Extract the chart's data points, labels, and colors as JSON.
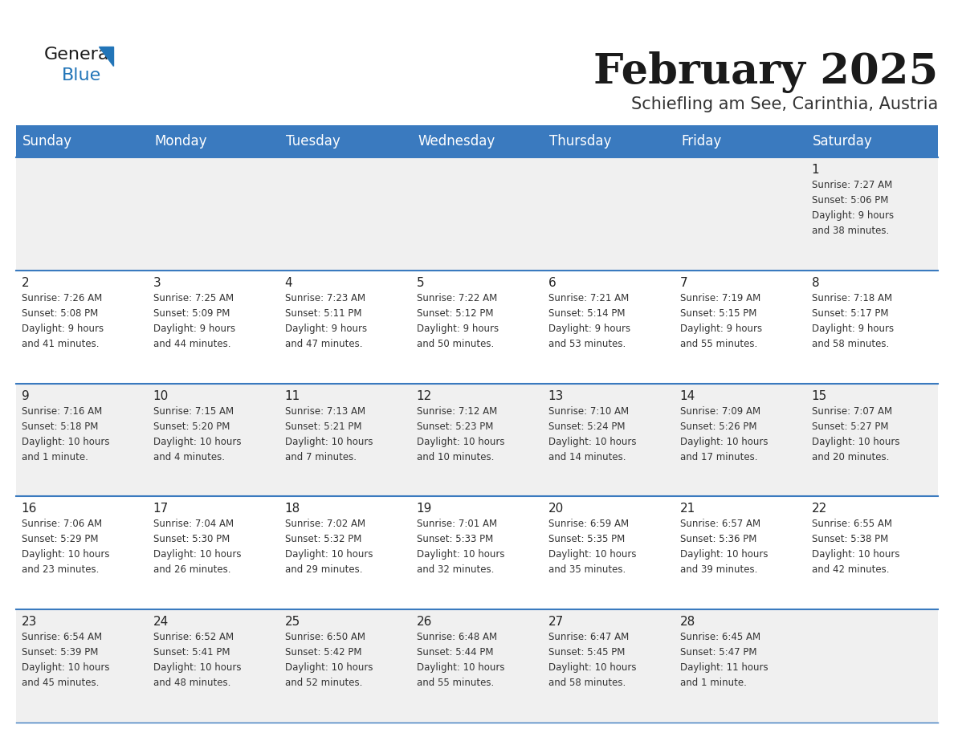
{
  "title": "February 2025",
  "subtitle": "Schiefling am See, Carinthia, Austria",
  "header_bg": "#3a7abf",
  "header_text": "#ffffff",
  "row_bg": [
    "#f0f0f0",
    "#ffffff",
    "#f0f0f0",
    "#ffffff",
    "#f0f0f0"
  ],
  "day_headers": [
    "Sunday",
    "Monday",
    "Tuesday",
    "Wednesday",
    "Thursday",
    "Friday",
    "Saturday"
  ],
  "calendar_data": [
    [
      {
        "day": null,
        "sunrise": null,
        "sunset": null,
        "daylight": null
      },
      {
        "day": null,
        "sunrise": null,
        "sunset": null,
        "daylight": null
      },
      {
        "day": null,
        "sunrise": null,
        "sunset": null,
        "daylight": null
      },
      {
        "day": null,
        "sunrise": null,
        "sunset": null,
        "daylight": null
      },
      {
        "day": null,
        "sunrise": null,
        "sunset": null,
        "daylight": null
      },
      {
        "day": null,
        "sunrise": null,
        "sunset": null,
        "daylight": null
      },
      {
        "day": 1,
        "sunrise": "7:27 AM",
        "sunset": "5:06 PM",
        "daylight": "9 hours\nand 38 minutes."
      }
    ],
    [
      {
        "day": 2,
        "sunrise": "7:26 AM",
        "sunset": "5:08 PM",
        "daylight": "9 hours\nand 41 minutes."
      },
      {
        "day": 3,
        "sunrise": "7:25 AM",
        "sunset": "5:09 PM",
        "daylight": "9 hours\nand 44 minutes."
      },
      {
        "day": 4,
        "sunrise": "7:23 AM",
        "sunset": "5:11 PM",
        "daylight": "9 hours\nand 47 minutes."
      },
      {
        "day": 5,
        "sunrise": "7:22 AM",
        "sunset": "5:12 PM",
        "daylight": "9 hours\nand 50 minutes."
      },
      {
        "day": 6,
        "sunrise": "7:21 AM",
        "sunset": "5:14 PM",
        "daylight": "9 hours\nand 53 minutes."
      },
      {
        "day": 7,
        "sunrise": "7:19 AM",
        "sunset": "5:15 PM",
        "daylight": "9 hours\nand 55 minutes."
      },
      {
        "day": 8,
        "sunrise": "7:18 AM",
        "sunset": "5:17 PM",
        "daylight": "9 hours\nand 58 minutes."
      }
    ],
    [
      {
        "day": 9,
        "sunrise": "7:16 AM",
        "sunset": "5:18 PM",
        "daylight": "10 hours\nand 1 minute."
      },
      {
        "day": 10,
        "sunrise": "7:15 AM",
        "sunset": "5:20 PM",
        "daylight": "10 hours\nand 4 minutes."
      },
      {
        "day": 11,
        "sunrise": "7:13 AM",
        "sunset": "5:21 PM",
        "daylight": "10 hours\nand 7 minutes."
      },
      {
        "day": 12,
        "sunrise": "7:12 AM",
        "sunset": "5:23 PM",
        "daylight": "10 hours\nand 10 minutes."
      },
      {
        "day": 13,
        "sunrise": "7:10 AM",
        "sunset": "5:24 PM",
        "daylight": "10 hours\nand 14 minutes."
      },
      {
        "day": 14,
        "sunrise": "7:09 AM",
        "sunset": "5:26 PM",
        "daylight": "10 hours\nand 17 minutes."
      },
      {
        "day": 15,
        "sunrise": "7:07 AM",
        "sunset": "5:27 PM",
        "daylight": "10 hours\nand 20 minutes."
      }
    ],
    [
      {
        "day": 16,
        "sunrise": "7:06 AM",
        "sunset": "5:29 PM",
        "daylight": "10 hours\nand 23 minutes."
      },
      {
        "day": 17,
        "sunrise": "7:04 AM",
        "sunset": "5:30 PM",
        "daylight": "10 hours\nand 26 minutes."
      },
      {
        "day": 18,
        "sunrise": "7:02 AM",
        "sunset": "5:32 PM",
        "daylight": "10 hours\nand 29 minutes."
      },
      {
        "day": 19,
        "sunrise": "7:01 AM",
        "sunset": "5:33 PM",
        "daylight": "10 hours\nand 32 minutes."
      },
      {
        "day": 20,
        "sunrise": "6:59 AM",
        "sunset": "5:35 PM",
        "daylight": "10 hours\nand 35 minutes."
      },
      {
        "day": 21,
        "sunrise": "6:57 AM",
        "sunset": "5:36 PM",
        "daylight": "10 hours\nand 39 minutes."
      },
      {
        "day": 22,
        "sunrise": "6:55 AM",
        "sunset": "5:38 PM",
        "daylight": "10 hours\nand 42 minutes."
      }
    ],
    [
      {
        "day": 23,
        "sunrise": "6:54 AM",
        "sunset": "5:39 PM",
        "daylight": "10 hours\nand 45 minutes."
      },
      {
        "day": 24,
        "sunrise": "6:52 AM",
        "sunset": "5:41 PM",
        "daylight": "10 hours\nand 48 minutes."
      },
      {
        "day": 25,
        "sunrise": "6:50 AM",
        "sunset": "5:42 PM",
        "daylight": "10 hours\nand 52 minutes."
      },
      {
        "day": 26,
        "sunrise": "6:48 AM",
        "sunset": "5:44 PM",
        "daylight": "10 hours\nand 55 minutes."
      },
      {
        "day": 27,
        "sunrise": "6:47 AM",
        "sunset": "5:45 PM",
        "daylight": "10 hours\nand 58 minutes."
      },
      {
        "day": 28,
        "sunrise": "6:45 AM",
        "sunset": "5:47 PM",
        "daylight": "11 hours\nand 1 minute."
      },
      {
        "day": null,
        "sunrise": null,
        "sunset": null,
        "daylight": null
      }
    ]
  ],
  "divider_color": "#3a7abf",
  "title_fontsize": 38,
  "subtitle_fontsize": 15,
  "header_fontsize": 12,
  "day_num_fontsize": 11,
  "cell_text_fontsize": 8.5
}
